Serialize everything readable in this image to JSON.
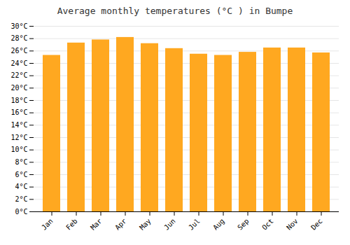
{
  "chart_data": {
    "type": "bar",
    "title": "Average monthly temperatures (°C ) in Bumpe",
    "categories": [
      "Jan",
      "Feb",
      "Mar",
      "Apr",
      "May",
      "Jun",
      "Jul",
      "Aug",
      "Sep",
      "Oct",
      "Nov",
      "Dec"
    ],
    "values": [
      25.3,
      27.3,
      27.8,
      28.2,
      27.2,
      26.4,
      25.5,
      25.3,
      25.8,
      26.5,
      26.5,
      25.7
    ],
    "color": "#FFA820",
    "ylim": [
      0,
      30
    ],
    "yticks": [
      {
        "value": 0,
        "label": "0°C"
      },
      {
        "value": 2,
        "label": "2°C"
      },
      {
        "value": 4,
        "label": "4°C"
      },
      {
        "value": 6,
        "label": "6°C"
      },
      {
        "value": 8,
        "label": "8°C"
      },
      {
        "value": 10,
        "label": "10°C"
      },
      {
        "value": 12,
        "label": "12°C"
      },
      {
        "value": 14,
        "label": "14°C"
      },
      {
        "value": 16,
        "label": "16°C"
      },
      {
        "value": 18,
        "label": "18°C"
      },
      {
        "value": 20,
        "label": "20°C"
      },
      {
        "value": 22,
        "label": "22°C"
      },
      {
        "value": 24,
        "label": "24°C"
      },
      {
        "value": 26,
        "label": "26°C"
      },
      {
        "value": 28,
        "label": "28°C"
      },
      {
        "value": 30,
        "label": "30°C"
      }
    ],
    "grid": true
  }
}
